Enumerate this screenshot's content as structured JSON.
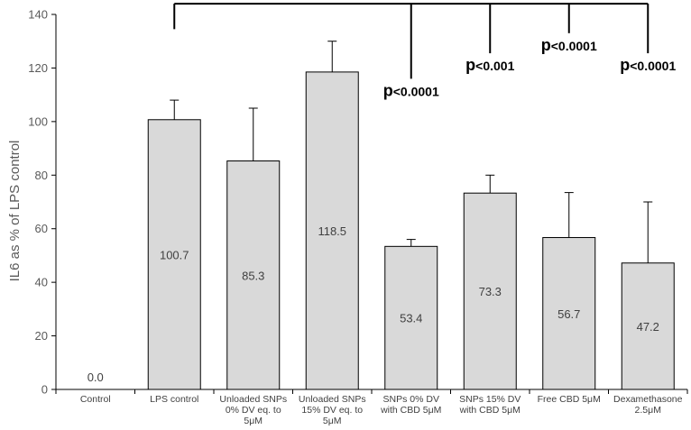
{
  "chart_data": {
    "type": "bar",
    "title": "",
    "xlabel": "",
    "ylabel": "IL6 as % of LPS control",
    "ylim": [
      0,
      140
    ],
    "yticks": [
      0,
      20,
      40,
      60,
      80,
      100,
      120,
      140
    ],
    "ytick_labels": [
      "0",
      "20",
      "40",
      "60",
      "80",
      "100",
      "120",
      "140"
    ],
    "grid": false,
    "legend": "none",
    "bar_color": "#d9d9d9",
    "bar_edge_color": "#000000",
    "categories": [
      [
        "Control"
      ],
      [
        "LPS control"
      ],
      [
        "Unloaded SNPs",
        "0% DV eq. to",
        "5μM"
      ],
      [
        "Unloaded SNPs",
        "15% DV eq. to",
        "5μM"
      ],
      [
        "SNPs 0% DV",
        "with CBD 5μM"
      ],
      [
        "SNPs 15% DV",
        "with CBD 5μM"
      ],
      [
        "Free CBD 5μM"
      ],
      [
        "Dexamethasone",
        "2.5μM"
      ]
    ],
    "values": [
      0.0,
      100.7,
      85.3,
      118.5,
      53.4,
      73.3,
      56.7,
      47.2
    ],
    "value_labels": [
      "0.0",
      "100.7",
      "85.3",
      "118.5",
      "53.4",
      "73.3",
      "56.7",
      "47.2"
    ],
    "error_upper": [
      0,
      108,
      105,
      130,
      56,
      80,
      73.5,
      70
    ],
    "significance": {
      "bracket_from": 1,
      "bracket_y": 144,
      "comparisons": [
        {
          "target": 4,
          "drop_to": 116,
          "label_p": "p",
          "label_rest": "<0.0001"
        },
        {
          "target": 5,
          "drop_to": 125.5,
          "label_p": "p",
          "label_rest": "<0.001"
        },
        {
          "target": 6,
          "drop_to": 133,
          "label_p": "p",
          "label_rest": "<0.0001"
        },
        {
          "target": 7,
          "drop_to": 125.5,
          "label_p": "p",
          "label_rest": "<0.0001"
        }
      ]
    }
  }
}
